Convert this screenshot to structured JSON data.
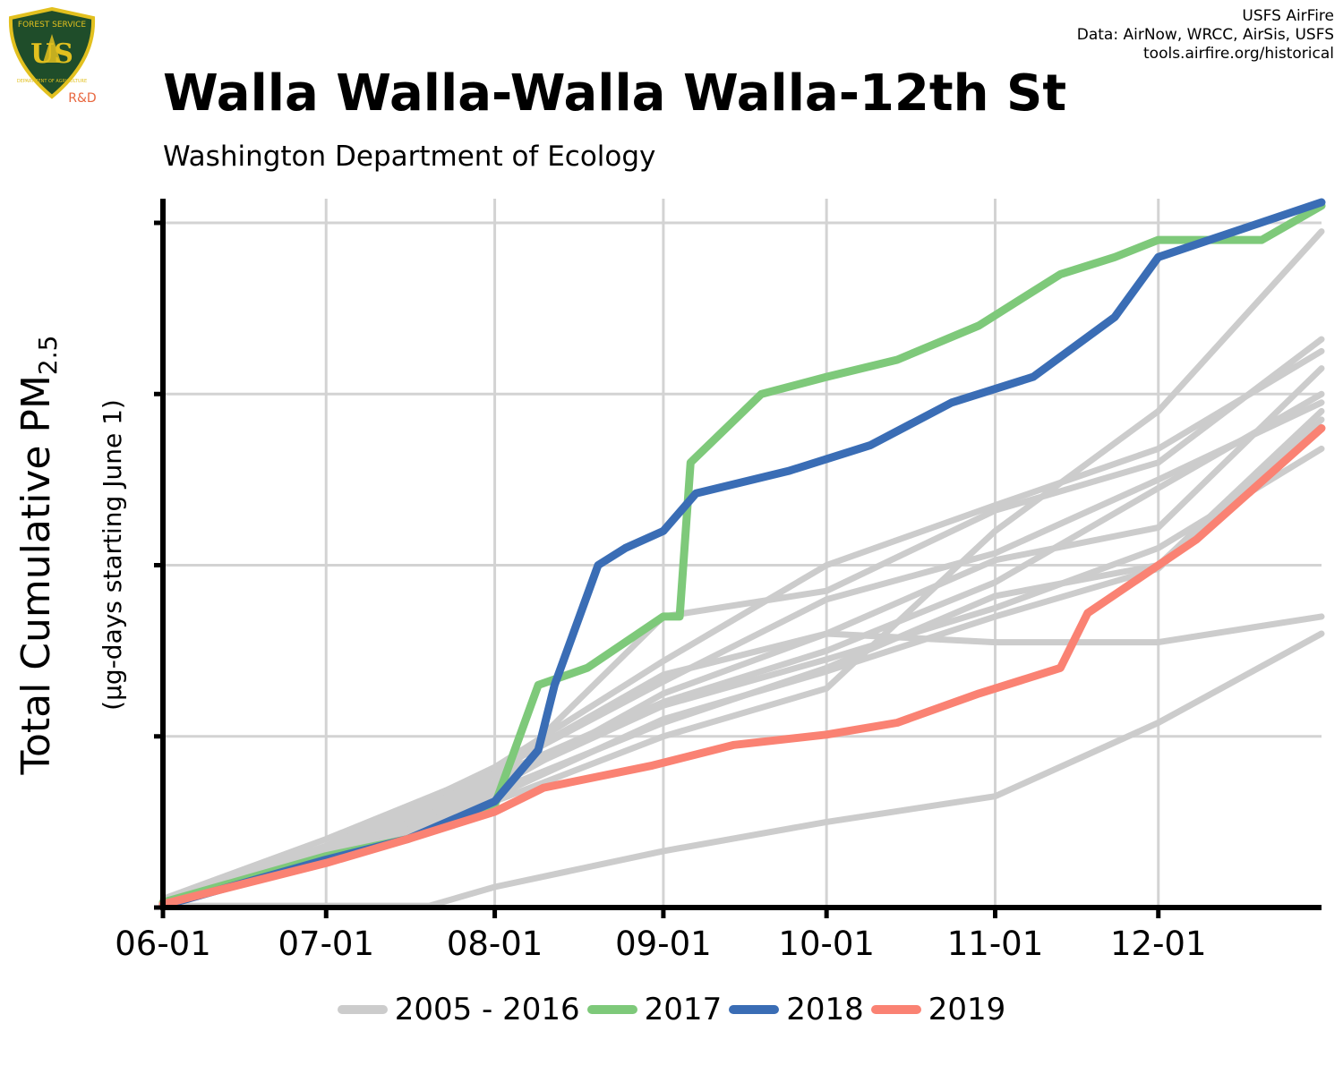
{
  "header": {
    "title": "Walla Walla-Walla Walla-12th St",
    "subtitle": "Washington Department of Ecology",
    "credits": [
      "USFS AirFire",
      "Data: AirNow, WRCC, AirSis, USFS",
      "tools.airfire.org/historical"
    ]
  },
  "logo": {
    "icon": "usfs-shield-logo-icon",
    "text_top": "FOREST SERVICE",
    "text_mid": "US",
    "text_bottom": "DEPARTMENT OF AGRICULTURE",
    "text_rd": "R&D",
    "colors": {
      "shield": "#1f4d2a",
      "border": "#e2c01f",
      "rd": "#e8673f"
    }
  },
  "chart_data": {
    "type": "line",
    "ylabel": "Total Cumulative PM",
    "ylabel_subscript": "2.5",
    "ylabel_secondary": "(µg-days starting June 1)",
    "x_ticks": [
      "06-01",
      "07-01",
      "08-01",
      "09-01",
      "10-01",
      "11-01",
      "12-01"
    ],
    "x_tick_days": [
      0,
      30,
      61,
      92,
      122,
      153,
      183
    ],
    "xlim_days": [
      0,
      213
    ],
    "ylim": [
      0,
      4.1
    ],
    "y_tick_values": [
      0,
      1,
      2,
      3,
      4
    ],
    "grid": true,
    "legend": {
      "position": "bottom",
      "entries": [
        {
          "label": "2005 - 2016",
          "color": "#cccccc"
        },
        {
          "label": "2017",
          "color": "#7ec97a"
        },
        {
          "label": "2018",
          "color": "#3a6db5"
        },
        {
          "label": "2019",
          "color": "#fa8273"
        }
      ]
    },
    "series": [
      {
        "name": "2005 - 2016",
        "color": "#cccccc",
        "points": [
          [
            0,
            0.03
          ],
          [
            30,
            0.32
          ],
          [
            61,
            0.73
          ],
          [
            92,
            1.7
          ],
          [
            122,
            1.85
          ],
          [
            153,
            2.32
          ],
          [
            183,
            2.6
          ],
          [
            213,
            3.32
          ]
        ]
      },
      {
        "name": "2005 - 2016",
        "color": "#cccccc",
        "points": [
          [
            0,
            0.04
          ],
          [
            30,
            0.36
          ],
          [
            61,
            0.8
          ],
          [
            92,
            1.32
          ],
          [
            122,
            1.8
          ],
          [
            153,
            2.07
          ],
          [
            183,
            2.5
          ],
          [
            213,
            2.95
          ]
        ]
      },
      {
        "name": "2005 - 2016",
        "color": "#cccccc",
        "points": [
          [
            0,
            0.03
          ],
          [
            30,
            0.33
          ],
          [
            61,
            0.77
          ],
          [
            92,
            1.2
          ],
          [
            122,
            1.5
          ],
          [
            153,
            1.9
          ],
          [
            183,
            2.45
          ],
          [
            213,
            3.0
          ]
        ]
      },
      {
        "name": "2005 - 2016",
        "color": "#cccccc",
        "points": [
          [
            0,
            0.05
          ],
          [
            30,
            0.4
          ],
          [
            61,
            0.8
          ],
          [
            92,
            1.36
          ],
          [
            122,
            1.6
          ],
          [
            153,
            2.03
          ],
          [
            183,
            2.22
          ],
          [
            213,
            3.15
          ]
        ]
      },
      {
        "name": "2005 - 2016",
        "color": "#cccccc",
        "points": [
          [
            0,
            0.03
          ],
          [
            30,
            0.33
          ],
          [
            61,
            0.73
          ],
          [
            92,
            1.18
          ],
          [
            122,
            1.45
          ],
          [
            153,
            1.75
          ],
          [
            183,
            2.1
          ],
          [
            213,
            2.68
          ]
        ]
      },
      {
        "name": "2005 - 2016",
        "color": "#cccccc",
        "points": [
          [
            0,
            0.02
          ],
          [
            30,
            0.3
          ],
          [
            61,
            0.68
          ],
          [
            92,
            1.08
          ],
          [
            122,
            1.4
          ],
          [
            153,
            1.82
          ],
          [
            183,
            2.0
          ],
          [
            213,
            2.9
          ]
        ]
      },
      {
        "name": "2005 - 2016",
        "color": "#cccccc",
        "points": [
          [
            0,
            0.02
          ],
          [
            30,
            0.35
          ],
          [
            61,
            0.82
          ],
          [
            92,
            1.44
          ],
          [
            122,
            2.0
          ],
          [
            153,
            2.35
          ],
          [
            183,
            2.68
          ],
          [
            213,
            3.25
          ]
        ]
      },
      {
        "name": "2005 - 2016",
        "color": "#cccccc",
        "points": [
          [
            0,
            0.03
          ],
          [
            30,
            0.28
          ],
          [
            61,
            0.65
          ],
          [
            92,
            1.1
          ],
          [
            122,
            1.38
          ],
          [
            153,
            1.7
          ],
          [
            183,
            1.98
          ],
          [
            213,
            2.85
          ]
        ]
      },
      {
        "name": "2005 - 2016",
        "color": "#cccccc",
        "points": [
          [
            0,
            0.02
          ],
          [
            30,
            0.3
          ],
          [
            61,
            0.7
          ],
          [
            92,
            1.25
          ],
          [
            122,
            1.6
          ],
          [
            153,
            1.55
          ],
          [
            183,
            1.55
          ],
          [
            213,
            1.7
          ]
        ]
      },
      {
        "name": "2005 - 2016",
        "color": "#cccccc",
        "points": [
          [
            0,
            0.02
          ],
          [
            30,
            0.27
          ],
          [
            61,
            0.62
          ],
          [
            92,
            1.0
          ],
          [
            122,
            1.28
          ],
          [
            153,
            2.2
          ],
          [
            183,
            2.9
          ],
          [
            213,
            3.95
          ]
        ]
      },
      {
        "name": "2005 - 2016",
        "color": "#cccccc",
        "points": [
          [
            0,
            0.01
          ],
          [
            30,
            0.01
          ],
          [
            49,
            0.01
          ],
          [
            61,
            0.12
          ],
          [
            92,
            0.33
          ],
          [
            122,
            0.5
          ],
          [
            153,
            0.65
          ],
          [
            183,
            1.08
          ],
          [
            213,
            1.6
          ]
        ]
      },
      {
        "name": "2017",
        "color": "#7ec97a",
        "points": [
          [
            0,
            0.03
          ],
          [
            30,
            0.3
          ],
          [
            45,
            0.4
          ],
          [
            61,
            0.6
          ],
          [
            69,
            1.3
          ],
          [
            78,
            1.4
          ],
          [
            92,
            1.7
          ],
          [
            95,
            1.7
          ],
          [
            97,
            2.6
          ],
          [
            110,
            3.0
          ],
          [
            122,
            3.1
          ],
          [
            135,
            3.2
          ],
          [
            150,
            3.4
          ],
          [
            165,
            3.7
          ],
          [
            175,
            3.8
          ],
          [
            183,
            3.9
          ],
          [
            202,
            3.9
          ],
          [
            213,
            4.1
          ]
        ]
      },
      {
        "name": "2018",
        "color": "#3a6db5",
        "points": [
          [
            0,
            0.01
          ],
          [
            30,
            0.28
          ],
          [
            45,
            0.4
          ],
          [
            61,
            0.62
          ],
          [
            69,
            0.92
          ],
          [
            72,
            1.3
          ],
          [
            80,
            2.0
          ],
          [
            85,
            2.1
          ],
          [
            92,
            2.2
          ],
          [
            98,
            2.42
          ],
          [
            115,
            2.55
          ],
          [
            130,
            2.7
          ],
          [
            145,
            2.95
          ],
          [
            160,
            3.1
          ],
          [
            175,
            3.45
          ],
          [
            183,
            3.8
          ],
          [
            213,
            4.12
          ]
        ]
      },
      {
        "name": "2019",
        "color": "#fa8273",
        "points": [
          [
            0,
            0.02
          ],
          [
            30,
            0.26
          ],
          [
            45,
            0.4
          ],
          [
            61,
            0.56
          ],
          [
            70,
            0.7
          ],
          [
            90,
            0.83
          ],
          [
            105,
            0.95
          ],
          [
            122,
            1.01
          ],
          [
            135,
            1.08
          ],
          [
            150,
            1.25
          ],
          [
            165,
            1.4
          ],
          [
            170,
            1.72
          ],
          [
            190,
            2.15
          ],
          [
            213,
            2.8
          ]
        ]
      }
    ]
  }
}
